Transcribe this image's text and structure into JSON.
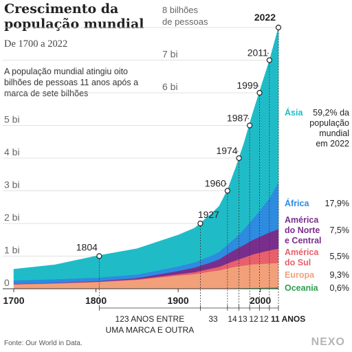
{
  "header": {
    "title": "Crescimento da população mundial",
    "subtitle": "De 1700 a 2022",
    "note": "A população mundial atingiu oito bilhões de pessoas 11 anos após a marca de sete bilhões"
  },
  "footer": {
    "source": "Fonte: Our World in Data.",
    "logo": "NEXO"
  },
  "chart_data": {
    "type": "area",
    "stacked": true,
    "unit": "bilhões de pessoas",
    "x": [
      1700,
      1750,
      1800,
      1850,
      1900,
      1920,
      1940,
      1950,
      1960,
      1970,
      1980,
      1990,
      2000,
      2011,
      2022
    ],
    "xlim": [
      1700,
      2022
    ],
    "ylim": [
      0,
      8
    ],
    "y_ticks": [
      {
        "v": 0,
        "label": "0"
      },
      {
        "v": 1,
        "label": "1 bi"
      },
      {
        "v": 2,
        "label": "2 bi"
      },
      {
        "v": 3,
        "label": "3 bi"
      },
      {
        "v": 4,
        "label": "4 bi"
      },
      {
        "v": 5,
        "label": "5 bi"
      },
      {
        "v": 6,
        "label": "6 bi"
      },
      {
        "v": 7,
        "label": "7 bi"
      },
      {
        "v": 8,
        "label": "8 bilhões de pessoas"
      }
    ],
    "x_ticks": [
      {
        "v": 1700,
        "label": "1700"
      },
      {
        "v": 1800,
        "label": "1800"
      },
      {
        "v": 1900,
        "label": "1900"
      },
      {
        "v": 2000,
        "label": "2000"
      }
    ],
    "series": [
      {
        "name": "Oceania",
        "share": "0,6%",
        "color": "#2e9e4f",
        "values": [
          0.002,
          0.002,
          0.002,
          0.003,
          0.006,
          0.009,
          0.011,
          0.013,
          0.016,
          0.019,
          0.023,
          0.027,
          0.031,
          0.037,
          0.045
        ]
      },
      {
        "name": "Europa",
        "share": "9,3%",
        "color": "#f2a07a",
        "values": [
          0.13,
          0.16,
          0.2,
          0.27,
          0.4,
          0.44,
          0.52,
          0.55,
          0.61,
          0.66,
          0.69,
          0.72,
          0.73,
          0.74,
          0.745
        ]
      },
      {
        "name": "América do Sul",
        "share": "5,5%",
        "color": "#e8606b",
        "values": [
          0.01,
          0.012,
          0.015,
          0.02,
          0.04,
          0.06,
          0.09,
          0.11,
          0.15,
          0.19,
          0.24,
          0.3,
          0.35,
          0.4,
          0.44
        ]
      },
      {
        "name": "América do Norte e Central",
        "share": "7,5%",
        "color": "#7a2e8c",
        "values": [
          0.007,
          0.01,
          0.015,
          0.035,
          0.1,
          0.14,
          0.19,
          0.23,
          0.29,
          0.34,
          0.39,
          0.44,
          0.49,
          0.55,
          0.6
        ]
      },
      {
        "name": "África",
        "share": "17,9%",
        "color": "#2d8be0",
        "values": [
          0.11,
          0.11,
          0.11,
          0.11,
          0.14,
          0.16,
          0.2,
          0.23,
          0.28,
          0.36,
          0.48,
          0.63,
          0.81,
          1.05,
          1.43
        ]
      },
      {
        "name": "Ásia",
        "share": "59,2%",
        "share_note": "da população mundial em 2022",
        "color": "#1fbcc7",
        "values": [
          0.34,
          0.44,
          0.66,
          0.79,
          0.96,
          1.05,
          1.28,
          1.4,
          1.68,
          2.14,
          2.63,
          3.2,
          3.71,
          4.21,
          4.74
        ]
      }
    ],
    "milestones": [
      {
        "year": 1804,
        "value": 1
      },
      {
        "year": 1927,
        "value": 2
      },
      {
        "year": 1960,
        "value": 3
      },
      {
        "year": 1974,
        "value": 4
      },
      {
        "year": 1987,
        "value": 5
      },
      {
        "year": 1999,
        "value": 6
      },
      {
        "year": 2011,
        "value": 7
      },
      {
        "year": 2022,
        "value": 8
      }
    ],
    "intervals": [
      {
        "label": "123 ANOS ENTRE UMA MARCA E OUTRA"
      },
      {
        "label": "33"
      },
      {
        "label": "14"
      },
      {
        "label": "13"
      },
      {
        "label": "12"
      },
      {
        "label": "12"
      },
      {
        "label": "11 ANOS"
      }
    ]
  }
}
